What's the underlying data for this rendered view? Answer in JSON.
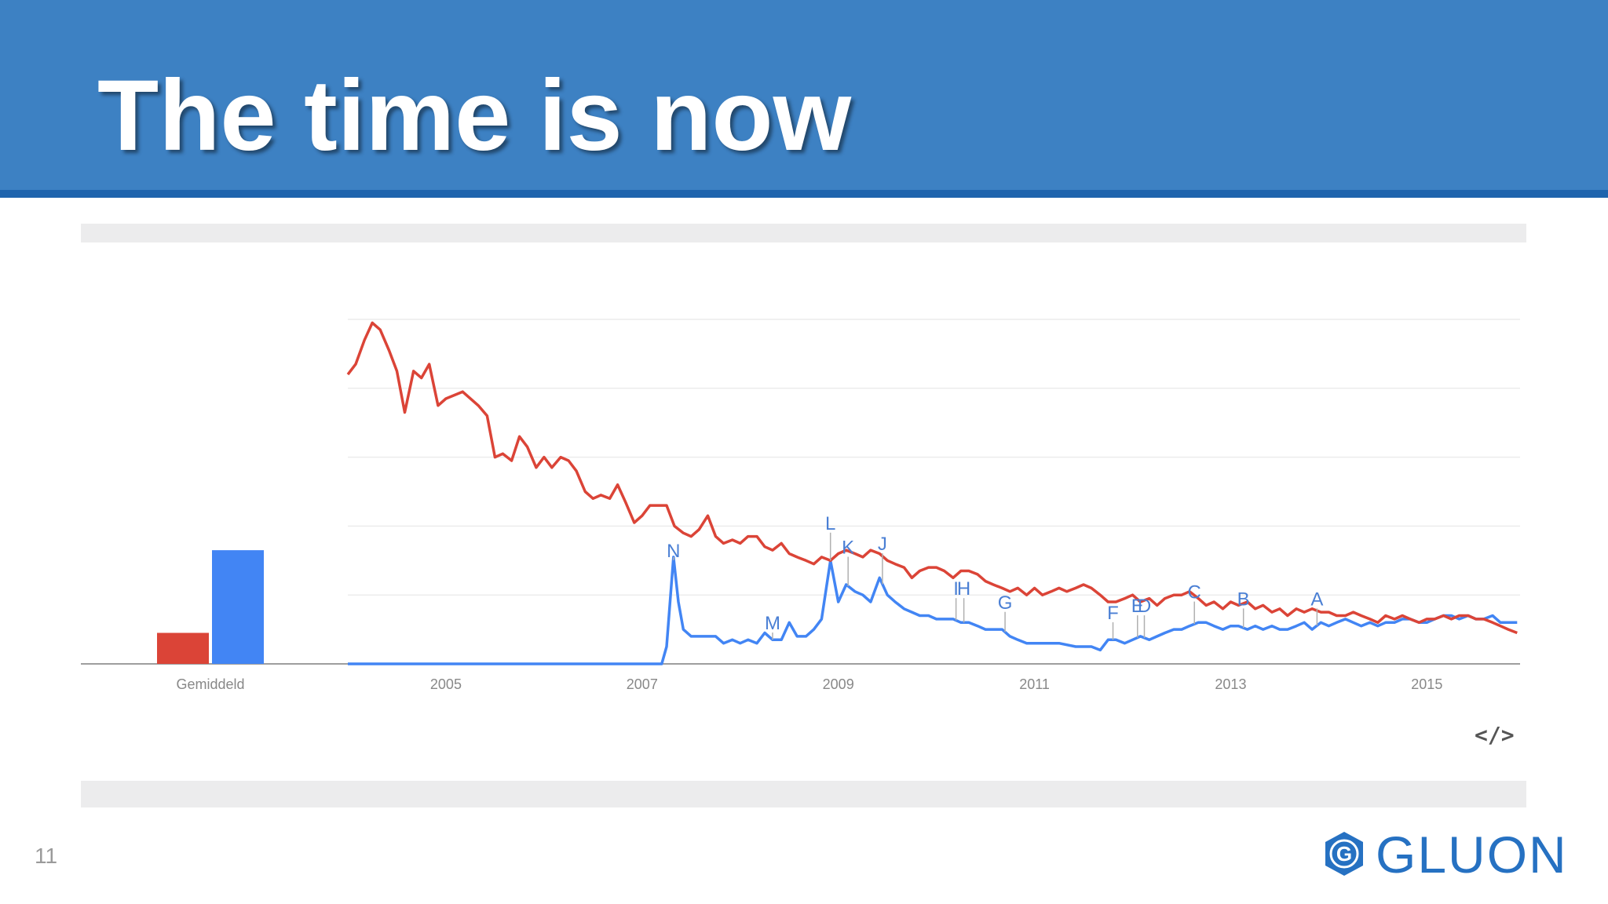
{
  "slide": {
    "title": "The time is now",
    "number": "11",
    "logo_text": "GLUON",
    "logo_mark_letter": "G",
    "embed_icon": "code-embed-icon",
    "colors": {
      "header": "#3d81c3",
      "header_border": "#1f64ad",
      "series_blue": "#4285f4",
      "series_red": "#db4437",
      "logo": "#2671c2"
    }
  },
  "chart_data": {
    "type": "line",
    "xlim": [
      2004.0,
      2015.95
    ],
    "ylim": [
      0,
      100
    ],
    "grid": true,
    "x_ticks": [
      {
        "x": 2005,
        "label": "2005"
      },
      {
        "x": 2007,
        "label": "2007"
      },
      {
        "x": 2009,
        "label": "2009"
      },
      {
        "x": 2011,
        "label": "2011"
      },
      {
        "x": 2013,
        "label": "2013"
      },
      {
        "x": 2015,
        "label": "2015"
      }
    ],
    "average": {
      "label": "Gemiddeld",
      "values": [
        9,
        33
      ]
    },
    "series": [
      {
        "color": "#db4437",
        "points": [
          [
            2004.0,
            84
          ],
          [
            2004.08,
            87
          ],
          [
            2004.17,
            94
          ],
          [
            2004.25,
            99
          ],
          [
            2004.33,
            97
          ],
          [
            2004.42,
            91
          ],
          [
            2004.5,
            85
          ],
          [
            2004.58,
            73
          ],
          [
            2004.67,
            85
          ],
          [
            2004.75,
            83
          ],
          [
            2004.83,
            87
          ],
          [
            2004.92,
            75
          ],
          [
            2005.0,
            77
          ],
          [
            2005.17,
            79
          ],
          [
            2005.33,
            75
          ],
          [
            2005.42,
            72
          ],
          [
            2005.5,
            60
          ],
          [
            2005.58,
            61
          ],
          [
            2005.67,
            59
          ],
          [
            2005.75,
            66
          ],
          [
            2005.83,
            63
          ],
          [
            2005.92,
            57
          ],
          [
            2006.0,
            60
          ],
          [
            2006.08,
            57
          ],
          [
            2006.17,
            60
          ],
          [
            2006.25,
            59
          ],
          [
            2006.33,
            56
          ],
          [
            2006.42,
            50
          ],
          [
            2006.5,
            48
          ],
          [
            2006.58,
            49
          ],
          [
            2006.67,
            48
          ],
          [
            2006.75,
            52
          ],
          [
            2006.83,
            47
          ],
          [
            2006.92,
            41
          ],
          [
            2007.0,
            43
          ],
          [
            2007.08,
            46
          ],
          [
            2007.17,
            46
          ],
          [
            2007.25,
            46
          ],
          [
            2007.33,
            40
          ],
          [
            2007.42,
            38
          ],
          [
            2007.5,
            37
          ],
          [
            2007.58,
            39
          ],
          [
            2007.67,
            43
          ],
          [
            2007.75,
            37
          ],
          [
            2007.83,
            35
          ],
          [
            2007.92,
            36
          ],
          [
            2008.0,
            35
          ],
          [
            2008.08,
            37
          ],
          [
            2008.17,
            37
          ],
          [
            2008.25,
            34
          ],
          [
            2008.33,
            33
          ],
          [
            2008.42,
            35
          ],
          [
            2008.5,
            32
          ],
          [
            2008.58,
            31
          ],
          [
            2008.67,
            30
          ],
          [
            2008.75,
            29
          ],
          [
            2008.83,
            31
          ],
          [
            2008.92,
            30
          ],
          [
            2009.0,
            32
          ],
          [
            2009.08,
            33
          ],
          [
            2009.17,
            32
          ],
          [
            2009.25,
            31
          ],
          [
            2009.33,
            33
          ],
          [
            2009.42,
            32
          ],
          [
            2009.5,
            30
          ],
          [
            2009.58,
            29
          ],
          [
            2009.67,
            28
          ],
          [
            2009.75,
            25
          ],
          [
            2009.83,
            27
          ],
          [
            2009.92,
            28
          ],
          [
            2010.0,
            28
          ],
          [
            2010.08,
            27
          ],
          [
            2010.17,
            25
          ],
          [
            2010.25,
            27
          ],
          [
            2010.33,
            27
          ],
          [
            2010.42,
            26
          ],
          [
            2010.5,
            24
          ],
          [
            2010.58,
            23
          ],
          [
            2010.67,
            22
          ],
          [
            2010.75,
            21
          ],
          [
            2010.83,
            22
          ],
          [
            2010.92,
            20
          ],
          [
            2011.0,
            22
          ],
          [
            2011.08,
            20
          ],
          [
            2011.17,
            21
          ],
          [
            2011.25,
            22
          ],
          [
            2011.33,
            21
          ],
          [
            2011.42,
            22
          ],
          [
            2011.5,
            23
          ],
          [
            2011.58,
            22
          ],
          [
            2011.67,
            20
          ],
          [
            2011.75,
            18
          ],
          [
            2011.83,
            18
          ],
          [
            2011.92,
            19
          ],
          [
            2012.0,
            20
          ],
          [
            2012.08,
            18
          ],
          [
            2012.17,
            19
          ],
          [
            2012.25,
            17
          ],
          [
            2012.33,
            19
          ],
          [
            2012.42,
            20
          ],
          [
            2012.5,
            20
          ],
          [
            2012.58,
            21
          ],
          [
            2012.67,
            19
          ],
          [
            2012.75,
            17
          ],
          [
            2012.83,
            18
          ],
          [
            2012.92,
            16
          ],
          [
            2013.0,
            18
          ],
          [
            2013.08,
            17
          ],
          [
            2013.17,
            18
          ],
          [
            2013.25,
            16
          ],
          [
            2013.33,
            17
          ],
          [
            2013.42,
            15
          ],
          [
            2013.5,
            16
          ],
          [
            2013.58,
            14
          ],
          [
            2013.67,
            16
          ],
          [
            2013.75,
            15
          ],
          [
            2013.83,
            16
          ],
          [
            2013.92,
            15
          ],
          [
            2014.0,
            15
          ],
          [
            2014.08,
            14
          ],
          [
            2014.17,
            14
          ],
          [
            2014.25,
            15
          ],
          [
            2014.33,
            14
          ],
          [
            2014.42,
            13
          ],
          [
            2014.5,
            12
          ],
          [
            2014.58,
            14
          ],
          [
            2014.67,
            13
          ],
          [
            2014.75,
            14
          ],
          [
            2014.83,
            13
          ],
          [
            2014.92,
            12
          ],
          [
            2015.0,
            13
          ],
          [
            2015.08,
            13
          ],
          [
            2015.17,
            14
          ],
          [
            2015.25,
            13
          ],
          [
            2015.33,
            14
          ],
          [
            2015.42,
            14
          ],
          [
            2015.5,
            13
          ],
          [
            2015.58,
            13
          ],
          [
            2015.67,
            12
          ],
          [
            2015.75,
            11
          ],
          [
            2015.83,
            10
          ],
          [
            2015.92,
            9
          ]
        ]
      },
      {
        "color": "#4285f4",
        "points": [
          [
            2004.0,
            0
          ],
          [
            2007.2,
            0
          ],
          [
            2007.25,
            5
          ],
          [
            2007.32,
            31
          ],
          [
            2007.37,
            18
          ],
          [
            2007.42,
            10
          ],
          [
            2007.5,
            8
          ],
          [
            2007.75,
            8
          ],
          [
            2007.83,
            6
          ],
          [
            2007.92,
            7
          ],
          [
            2008.0,
            6
          ],
          [
            2008.08,
            7
          ],
          [
            2008.17,
            6
          ],
          [
            2008.25,
            9
          ],
          [
            2008.33,
            7
          ],
          [
            2008.42,
            7
          ],
          [
            2008.5,
            12
          ],
          [
            2008.58,
            8
          ],
          [
            2008.67,
            8
          ],
          [
            2008.75,
            10
          ],
          [
            2008.83,
            13
          ],
          [
            2008.92,
            30
          ],
          [
            2009.0,
            18
          ],
          [
            2009.08,
            23
          ],
          [
            2009.17,
            21
          ],
          [
            2009.25,
            20
          ],
          [
            2009.33,
            18
          ],
          [
            2009.42,
            25
          ],
          [
            2009.5,
            20
          ],
          [
            2009.58,
            18
          ],
          [
            2009.67,
            16
          ],
          [
            2009.75,
            15
          ],
          [
            2009.83,
            14
          ],
          [
            2009.92,
            14
          ],
          [
            2010.0,
            13
          ],
          [
            2010.08,
            13
          ],
          [
            2010.17,
            13
          ],
          [
            2010.25,
            12
          ],
          [
            2010.33,
            12
          ],
          [
            2010.42,
            11
          ],
          [
            2010.5,
            10
          ],
          [
            2010.58,
            10
          ],
          [
            2010.67,
            10
          ],
          [
            2010.75,
            8
          ],
          [
            2010.83,
            7
          ],
          [
            2010.92,
            6
          ],
          [
            2011.0,
            6
          ],
          [
            2011.25,
            6
          ],
          [
            2011.42,
            5
          ],
          [
            2011.58,
            5
          ],
          [
            2011.67,
            4
          ],
          [
            2011.75,
            7
          ],
          [
            2011.83,
            7
          ],
          [
            2011.92,
            6
          ],
          [
            2012.0,
            7
          ],
          [
            2012.08,
            8
          ],
          [
            2012.17,
            7
          ],
          [
            2012.25,
            8
          ],
          [
            2012.33,
            9
          ],
          [
            2012.42,
            10
          ],
          [
            2012.5,
            10
          ],
          [
            2012.58,
            11
          ],
          [
            2012.67,
            12
          ],
          [
            2012.75,
            12
          ],
          [
            2012.83,
            11
          ],
          [
            2012.92,
            10
          ],
          [
            2013.0,
            11
          ],
          [
            2013.08,
            11
          ],
          [
            2013.17,
            10
          ],
          [
            2013.25,
            11
          ],
          [
            2013.33,
            10
          ],
          [
            2013.42,
            11
          ],
          [
            2013.5,
            10
          ],
          [
            2013.58,
            10
          ],
          [
            2013.67,
            11
          ],
          [
            2013.75,
            12
          ],
          [
            2013.83,
            10
          ],
          [
            2013.92,
            12
          ],
          [
            2014.0,
            11
          ],
          [
            2014.08,
            12
          ],
          [
            2014.17,
            13
          ],
          [
            2014.25,
            12
          ],
          [
            2014.33,
            11
          ],
          [
            2014.42,
            12
          ],
          [
            2014.5,
            11
          ],
          [
            2014.58,
            12
          ],
          [
            2014.67,
            12
          ],
          [
            2014.75,
            13
          ],
          [
            2014.83,
            13
          ],
          [
            2014.92,
            12
          ],
          [
            2015.0,
            12
          ],
          [
            2015.08,
            13
          ],
          [
            2015.17,
            14
          ],
          [
            2015.25,
            14
          ],
          [
            2015.33,
            13
          ],
          [
            2015.42,
            14
          ],
          [
            2015.5,
            13
          ],
          [
            2015.58,
            13
          ],
          [
            2015.67,
            14
          ],
          [
            2015.75,
            12
          ],
          [
            2015.83,
            12
          ],
          [
            2015.92,
            12
          ]
        ]
      }
    ],
    "annotations": [
      {
        "label": "N",
        "x": 2007.32,
        "y": 31
      },
      {
        "label": "M",
        "x": 2008.33,
        "y": 10
      },
      {
        "label": "L",
        "x": 2008.92,
        "y": 39
      },
      {
        "label": "K",
        "x": 2009.1,
        "y": 32
      },
      {
        "label": "J",
        "x": 2009.45,
        "y": 33
      },
      {
        "label": "I",
        "x": 2010.2,
        "y": 20
      },
      {
        "label": "H",
        "x": 2010.28,
        "y": 20
      },
      {
        "label": "G",
        "x": 2010.7,
        "y": 16
      },
      {
        "label": "F",
        "x": 2011.8,
        "y": 13
      },
      {
        "label": "E",
        "x": 2012.05,
        "y": 15
      },
      {
        "label": "D",
        "x": 2012.12,
        "y": 15
      },
      {
        "label": "C",
        "x": 2012.63,
        "y": 19
      },
      {
        "label": "B",
        "x": 2013.13,
        "y": 17
      },
      {
        "label": "A",
        "x": 2013.88,
        "y": 17
      }
    ]
  }
}
